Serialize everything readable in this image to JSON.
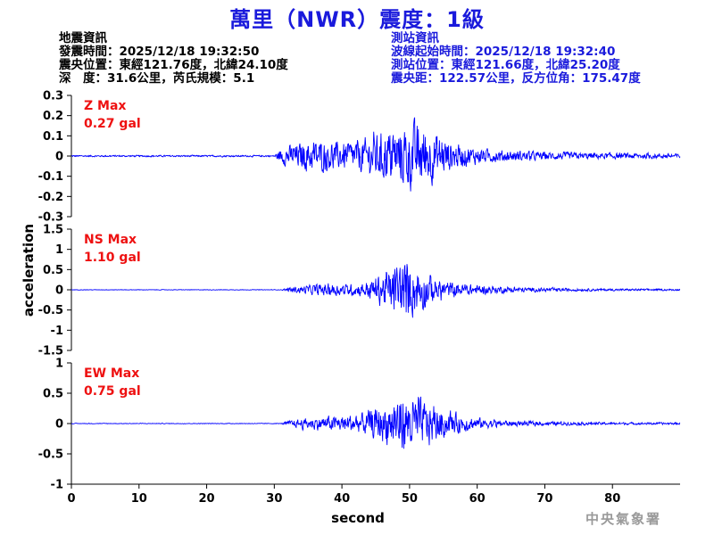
{
  "title": "萬里（NWR）震度：1級",
  "quake_info": {
    "header": "地震資訊",
    "origin_time": "發震時間：2025/12/18 19:32:50",
    "epicenter": "震央位置：東經121.76度，北緯24.10度",
    "depth_magnitude": "深　度：31.6公里，芮氏規模：5.1"
  },
  "station_info": {
    "header": "測站資訊",
    "trace_start": "波線起始時間：2025/12/18 19:32:40",
    "location": "測站位置：東經121.66度，北緯25.20度",
    "distance_azimuth": "震央距：122.57公里，反方位角：175.47度"
  },
  "watermark": "中央氣象署",
  "colors": {
    "trace": "#0000ff",
    "max_label": "#ee1111",
    "title": "#1a1adc"
  },
  "chart_data": [
    {
      "type": "line",
      "component": "Z",
      "max_label": "Z Max",
      "max_value": "0.27 gal",
      "ylim": [
        -0.3,
        0.3
      ],
      "yticks": [
        -0.3,
        -0.2,
        -0.1,
        0,
        0.1,
        0.2,
        0.3
      ],
      "ytick_labels": [
        "-0.3",
        "-0.2",
        "-0.1",
        "0",
        "0.1",
        "0.2",
        "0.3"
      ],
      "xlim": [
        0,
        90
      ],
      "envelope": [
        [
          0,
          0.006
        ],
        [
          30,
          0.006
        ],
        [
          31,
          0.06
        ],
        [
          33,
          0.09
        ],
        [
          36,
          0.12
        ],
        [
          39,
          0.1
        ],
        [
          42,
          0.11
        ],
        [
          45,
          0.16
        ],
        [
          48,
          0.22
        ],
        [
          50,
          0.25
        ],
        [
          52,
          0.24
        ],
        [
          54,
          0.17
        ],
        [
          57,
          0.09
        ],
        [
          60,
          0.06
        ],
        [
          63,
          0.045
        ],
        [
          66,
          0.04
        ],
        [
          70,
          0.03
        ],
        [
          80,
          0.022
        ],
        [
          90,
          0.018
        ]
      ]
    },
    {
      "type": "line",
      "component": "NS",
      "max_label": "NS Max",
      "max_value": "1.10 gal",
      "ylim": [
        -1.5,
        1.5
      ],
      "yticks": [
        -1.5,
        -1,
        -0.5,
        0,
        0.5,
        1,
        1.5
      ],
      "ytick_labels": [
        "-1.5",
        "-1",
        "-0.5",
        "0",
        "0.5",
        "1",
        "1.5"
      ],
      "xlim": [
        0,
        90
      ],
      "envelope": [
        [
          0,
          0.01
        ],
        [
          31,
          0.01
        ],
        [
          32,
          0.08
        ],
        [
          35,
          0.17
        ],
        [
          38,
          0.25
        ],
        [
          40,
          0.2
        ],
        [
          43,
          0.25
        ],
        [
          46,
          0.6
        ],
        [
          48,
          0.95
        ],
        [
          50,
          1.08
        ],
        [
          52,
          0.75
        ],
        [
          54,
          0.4
        ],
        [
          57,
          0.25
        ],
        [
          60,
          0.18
        ],
        [
          64,
          0.12
        ],
        [
          68,
          0.08
        ],
        [
          75,
          0.05
        ],
        [
          90,
          0.03
        ]
      ]
    },
    {
      "type": "line",
      "component": "EW",
      "max_label": "EW Max",
      "max_value": "0.75 gal",
      "ylim": [
        -1,
        1
      ],
      "yticks": [
        -1,
        -0.5,
        0,
        0.5,
        1
      ],
      "ytick_labels": [
        "-1",
        "-0.5",
        "0",
        "0.5",
        "1"
      ],
      "xlim": [
        0,
        90
      ],
      "envelope": [
        [
          0,
          0.008
        ],
        [
          31,
          0.008
        ],
        [
          32,
          0.06
        ],
        [
          34,
          0.12
        ],
        [
          37,
          0.17
        ],
        [
          40,
          0.2
        ],
        [
          43,
          0.26
        ],
        [
          46,
          0.45
        ],
        [
          48,
          0.7
        ],
        [
          50,
          0.72
        ],
        [
          52,
          0.55
        ],
        [
          55,
          0.35
        ],
        [
          58,
          0.2
        ],
        [
          61,
          0.12
        ],
        [
          65,
          0.07
        ],
        [
          70,
          0.05
        ],
        [
          80,
          0.03
        ],
        [
          90,
          0.025
        ]
      ]
    }
  ],
  "axes": {
    "ylabel": "acceleration",
    "xlabel": "second",
    "xticks": [
      0,
      10,
      20,
      30,
      40,
      50,
      60,
      70,
      80
    ],
    "xtick_labels": [
      "0",
      "10",
      "20",
      "30",
      "40",
      "50",
      "60",
      "70",
      "80"
    ]
  }
}
